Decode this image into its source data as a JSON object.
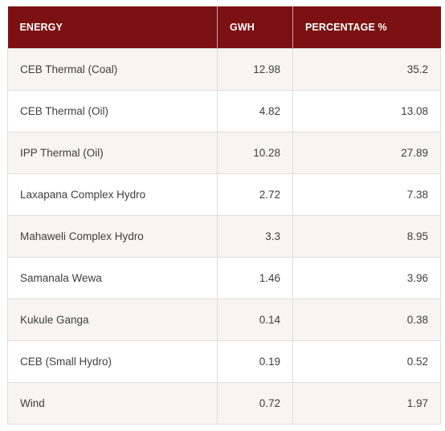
{
  "table": {
    "headers": {
      "energy": "ENERGY",
      "gwh": "GWH",
      "percentage": "PERCENTAGE %"
    },
    "rows": [
      {
        "energy": "CEB Thermal (Coal)",
        "gwh": "12.98",
        "percentage": "35.2"
      },
      {
        "energy": "CEB Thermal (Oil)",
        "gwh": "4.82",
        "percentage": "13.08"
      },
      {
        "energy": "IPP Thermal (Oil)",
        "gwh": "10.28",
        "percentage": "27.89"
      },
      {
        "energy": "Laxapana Complex Hydro",
        "gwh": "2.72",
        "percentage": "7.38"
      },
      {
        "energy": "Mahaweli Complex Hydro",
        "gwh": "3.3",
        "percentage": "8.95"
      },
      {
        "energy": "Samanala Wewa",
        "gwh": "1.46",
        "percentage": "3.96"
      },
      {
        "energy": "Kukule Ganga",
        "gwh": "0.14",
        "percentage": "0.38"
      },
      {
        "energy": "CEB (Small Hydro)",
        "gwh": "0.19",
        "percentage": "0.52"
      },
      {
        "energy": "Wind",
        "gwh": "0.72",
        "percentage": "1.97"
      }
    ]
  },
  "colors": {
    "header_background": "#7b1113",
    "header_text": "#ffffff",
    "row_stripe": "#f7f4f3",
    "cell_text": "#3f3f3f"
  }
}
